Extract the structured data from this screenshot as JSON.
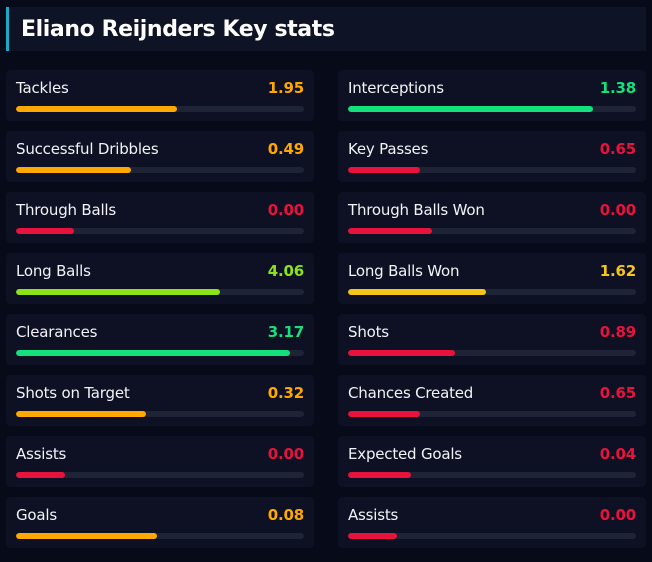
{
  "page": {
    "title": "Eliano Reijnders Key stats"
  },
  "colors": {
    "background": "#070a18",
    "card": "#0d1123",
    "track": "#1f2336",
    "accent": "#1aa9c8",
    "red": "#e8123c",
    "orange": "#ffa800",
    "yellow": "#f5c518",
    "lime": "#8ce31a",
    "green": "#14e07c"
  },
  "stats": [
    {
      "label": "Tackles",
      "value": "1.95",
      "percent": 56,
      "color": "orange"
    },
    {
      "label": "Interceptions",
      "value": "1.38",
      "percent": 85,
      "color": "green"
    },
    {
      "label": "Successful Dribbles",
      "value": "0.49",
      "percent": 40,
      "color": "orange"
    },
    {
      "label": "Key Passes",
      "value": "0.65",
      "percent": 25,
      "color": "red"
    },
    {
      "label": "Through Balls",
      "value": "0.00",
      "percent": 20,
      "color": "red"
    },
    {
      "label": "Through Balls Won",
      "value": "0.00",
      "percent": 29,
      "color": "red"
    },
    {
      "label": "Long Balls",
      "value": "4.06",
      "percent": 71,
      "color": "lime"
    },
    {
      "label": "Long Balls Won",
      "value": "1.62",
      "percent": 48,
      "color": "yellow"
    },
    {
      "label": "Clearances",
      "value": "3.17",
      "percent": 95,
      "color": "green"
    },
    {
      "label": "Shots",
      "value": "0.89",
      "percent": 37,
      "color": "red"
    },
    {
      "label": "Shots on Target",
      "value": "0.32",
      "percent": 45,
      "color": "orange"
    },
    {
      "label": "Chances Created",
      "value": "0.65",
      "percent": 25,
      "color": "red"
    },
    {
      "label": "Assists",
      "value": "0.00",
      "percent": 17,
      "color": "red"
    },
    {
      "label": "Expected Goals",
      "value": "0.04",
      "percent": 22,
      "color": "red"
    },
    {
      "label": "Goals",
      "value": "0.08",
      "percent": 49,
      "color": "orange"
    },
    {
      "label": "Assists",
      "value": "0.00",
      "percent": 17,
      "color": "red"
    }
  ]
}
